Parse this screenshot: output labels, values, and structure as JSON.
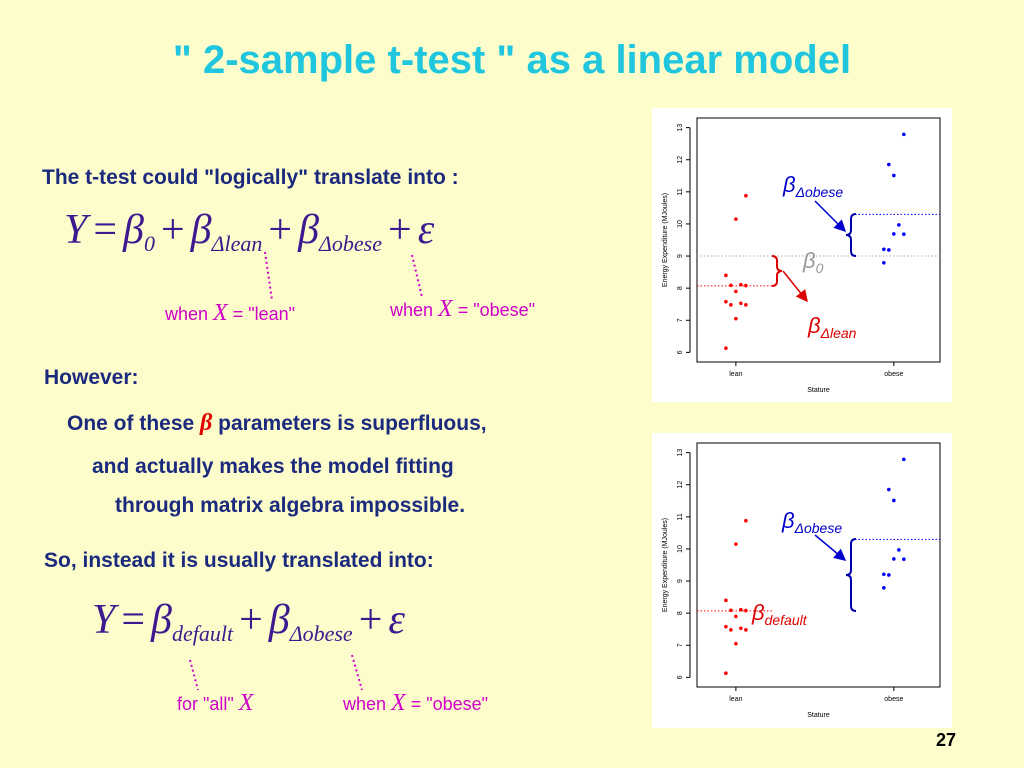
{
  "title": "\" 2-sample t-test \" as a linear model",
  "intro": "The t-test could \"logically\" translate into :",
  "equation_1": [
    {
      "text": "Y"
    },
    {
      "text": "="
    },
    {
      "text": "β",
      "sub": "0"
    },
    {
      "text": "+"
    },
    {
      "text": "β",
      "sub": "Δlean"
    },
    {
      "text": "+"
    },
    {
      "text": "β",
      "sub": "Δobese"
    },
    {
      "text": "+"
    },
    {
      "text": "ε"
    }
  ],
  "equation_1_notes": [
    [
      {
        "text": "when "
      },
      {
        "text": "X",
        "math": true
      },
      {
        "text": " = \"lean\""
      }
    ],
    [
      {
        "text": "when "
      },
      {
        "text": "X",
        "math": true
      },
      {
        "text": " = \"obese\""
      }
    ]
  ],
  "however": "However:",
  "superfluous": [
    {
      "text": "One of these "
    },
    {
      "text": "β",
      "math": true,
      "color": "#e00000"
    },
    {
      "text": " parameters is superfluous,"
    }
  ],
  "fitting_1": "and actually makes the model fitting",
  "fitting_2": "through matrix algebra impossible.",
  "instead": "So, instead it is usually translated into:",
  "equation_2": [
    {
      "text": "Y"
    },
    {
      "text": "="
    },
    {
      "text": "β",
      "sub": "default"
    },
    {
      "text": "+"
    },
    {
      "text": "β",
      "sub": "Δobese"
    },
    {
      "text": "+"
    },
    {
      "text": "ε"
    }
  ],
  "equation_2_notes": [
    [
      {
        "text": "for \"all\" "
      },
      {
        "text": "X",
        "math": true
      }
    ],
    [
      {
        "text": "when "
      },
      {
        "text": "X",
        "math": true
      },
      {
        "text": " = \"obese\""
      }
    ]
  ],
  "page_number": "27",
  "chart_data": [
    {
      "type": "strip",
      "categories": [
        "lean",
        "obese"
      ],
      "groups": [
        {
          "color": "#ff0000",
          "values": [
            6.13,
            7.05,
            7.48,
            7.48,
            7.53,
            7.58,
            7.9,
            8.08,
            8.09,
            8.11,
            8.4,
            10.15,
            10.88
          ]
        },
        {
          "color": "#0000ff",
          "values": [
            9.21,
            11.51,
            12.79,
            11.85,
            9.97,
            8.79,
            9.69,
            9.68,
            9.19
          ]
        }
      ],
      "ylim": [
        5.7,
        13.3
      ],
      "yticks": [
        6,
        7,
        8,
        9,
        10,
        11,
        12,
        13
      ],
      "ylabel": "Energy Expenditure (MJoules)",
      "xlabel": "Stature",
      "ref_lines": [
        {
          "value": 8.07,
          "color": "#ff0000",
          "span": "lean"
        },
        {
          "value": 9.0,
          "color": "#aaaaaa",
          "span": "all"
        },
        {
          "value": 10.3,
          "color": "#0000ff",
          "span": "obese"
        }
      ],
      "annotations": [
        {
          "text": "β",
          "sub": "Δobese",
          "color": "#0000cc"
        },
        {
          "text": "β",
          "sub": "0",
          "color": "#999999"
        },
        {
          "text": "β",
          "sub": "Δlean",
          "color": "#dd0000"
        }
      ]
    },
    {
      "type": "strip",
      "categories": [
        "lean",
        "obese"
      ],
      "groups": [
        {
          "color": "#ff0000",
          "values": [
            6.13,
            7.05,
            7.48,
            7.48,
            7.53,
            7.58,
            7.9,
            8.08,
            8.09,
            8.11,
            8.4,
            10.15,
            10.88
          ]
        },
        {
          "color": "#0000ff",
          "values": [
            9.21,
            11.51,
            12.79,
            11.85,
            9.97,
            8.79,
            9.69,
            9.68,
            9.19
          ]
        }
      ],
      "ylim": [
        5.7,
        13.3
      ],
      "yticks": [
        6,
        7,
        8,
        9,
        10,
        11,
        12,
        13
      ],
      "ylabel": "Energy Expenditure (MJoules)",
      "xlabel": "Stature",
      "ref_lines": [
        {
          "value": 8.07,
          "color": "#ff0000",
          "span": "lean"
        },
        {
          "value": 10.3,
          "color": "#0000ff",
          "span": "obese"
        }
      ],
      "annotations": [
        {
          "text": "β",
          "sub": "Δobese",
          "color": "#0000cc"
        },
        {
          "text": "β",
          "sub": "default",
          "color": "#dd0000"
        }
      ]
    }
  ]
}
